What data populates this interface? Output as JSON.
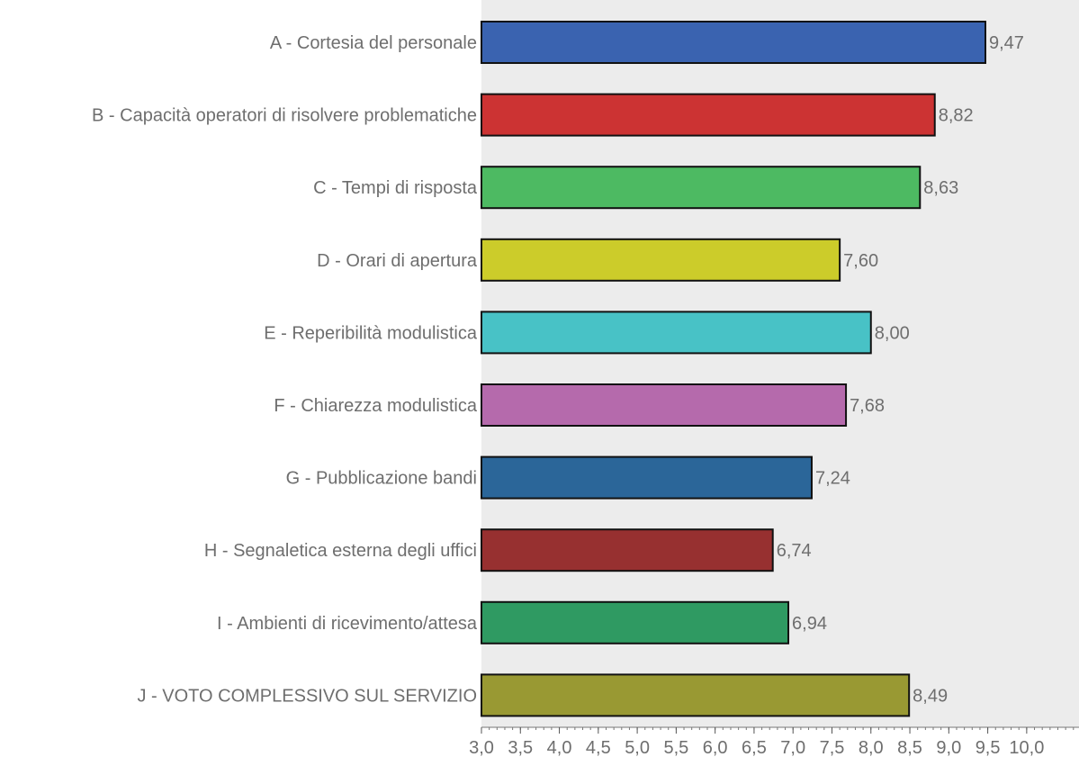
{
  "chart_data": {
    "type": "bar",
    "orientation": "horizontal",
    "categories": [
      "A - Cortesia del personale",
      "B - Capacità operatori di risolvere problematiche",
      "C - Tempi di risposta",
      "D - Orari di apertura",
      "E - Reperibilità modulistica",
      "F - Chiarezza modulistica",
      "G - Pubblicazione bandi",
      "H - Segnaletica esterna degli uffici",
      "I - Ambienti di ricevimento/attesa",
      "J - VOTO COMPLESSIVO SUL SERVIZIO"
    ],
    "values": [
      9.47,
      8.82,
      8.63,
      7.6,
      8.0,
      7.68,
      7.24,
      6.74,
      6.94,
      8.49
    ],
    "value_labels": [
      "9,47",
      "8,82",
      "8,63",
      "7,60",
      "8,00",
      "7,68",
      "7,24",
      "6,74",
      "6,94",
      "8,49"
    ],
    "colors": [
      "#3a63b0",
      "#cc3333",
      "#4dba62",
      "#cccc2a",
      "#48c2c6",
      "#b56aac",
      "#2b6699",
      "#973030",
      "#2f9a62",
      "#999933"
    ],
    "xlim": [
      3.0,
      10.0
    ],
    "ticks": [
      3.0,
      3.5,
      4.0,
      4.5,
      5.0,
      5.5,
      6.0,
      6.5,
      7.0,
      7.5,
      8.0,
      8.5,
      9.0,
      9.5,
      10.0
    ],
    "tick_labels": [
      "3,0",
      "3,5",
      "4,0",
      "4,5",
      "5,0",
      "5,5",
      "6,0",
      "6,5",
      "7,0",
      "7,5",
      "8,0",
      "8,5",
      "9,0",
      "9,5",
      "10,0"
    ],
    "title": "",
    "xlabel": "",
    "ylabel": "",
    "grid": false,
    "legend": "none",
    "plot_background": "#ececec",
    "bar_border": "#111111",
    "text_color": "#6e6e6e"
  }
}
